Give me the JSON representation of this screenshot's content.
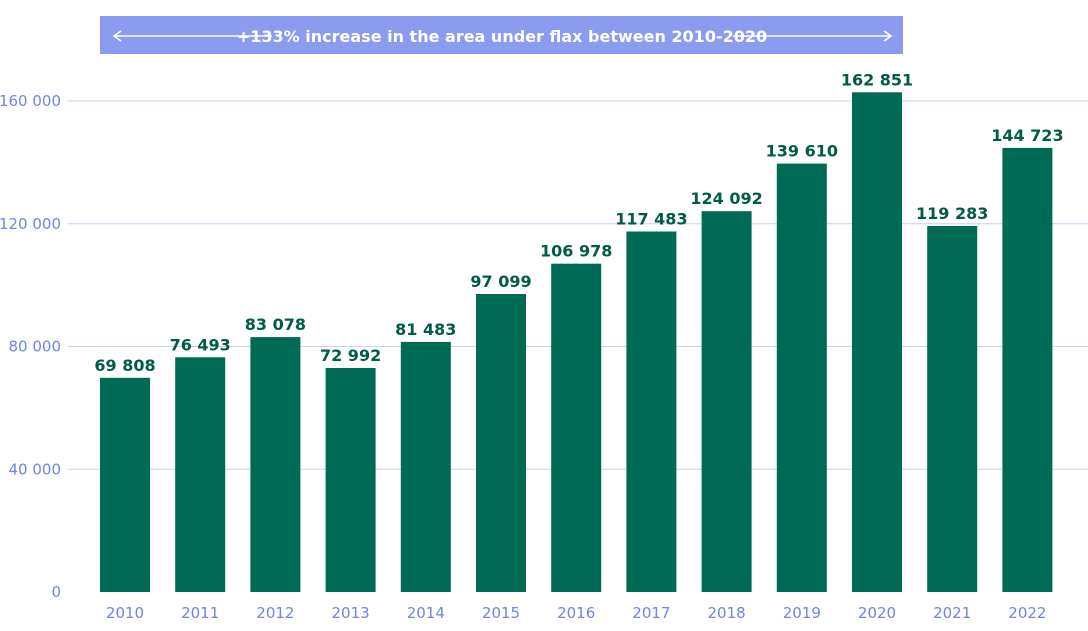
{
  "chart_data": {
    "type": "bar",
    "title": "",
    "xlabel": "",
    "ylabel": "",
    "ylim": [
      0,
      170000
    ],
    "grid": "horizontal",
    "legend": "none",
    "annotation": "+133% increase in the area under flax between 2010-2020",
    "categories": [
      "2010",
      "2011",
      "2012",
      "2013",
      "2014",
      "2015",
      "2016",
      "2017",
      "2018",
      "2019",
      "2020",
      "2021",
      "2022"
    ],
    "values": [
      69808,
      76493,
      83078,
      72992,
      81483,
      97099,
      106978,
      117483,
      124092,
      139610,
      162851,
      119283,
      144723
    ],
    "value_labels": [
      "69 808",
      "76 493",
      "83 078",
      "72 992",
      "81 483",
      "97 099",
      "106 978",
      "117 483",
      "124 092",
      "139 610",
      "162 851",
      "119 283",
      "144 723"
    ],
    "y_ticks": [
      0,
      40000,
      80000,
      120000,
      160000
    ],
    "y_tick_labels": [
      "0",
      "40 000",
      "80 000",
      "120 000",
      "160 000"
    ]
  },
  "colors": {
    "bar": "#006b54",
    "bar_label": "#005c47",
    "axis_text": "#7083e6",
    "gridline": "#c7cff5",
    "banner": "#8a9cf0",
    "banner_text": "#ffffff"
  }
}
